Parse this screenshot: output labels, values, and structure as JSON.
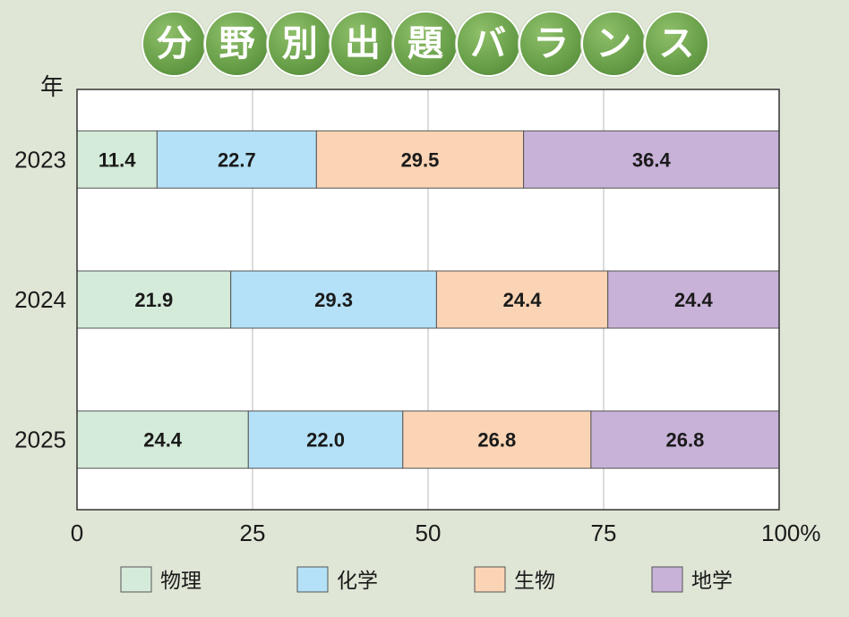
{
  "title_chars": [
    "分",
    "野",
    "別",
    "出",
    "題",
    "バ",
    "ラ",
    "ン",
    "ス"
  ],
  "chart_data": {
    "type": "bar",
    "orientation": "horizontal",
    "stacked": true,
    "y_axis_title": "年",
    "categories": [
      "2023",
      "2024",
      "2025"
    ],
    "series": [
      {
        "name": "物理",
        "color": "#d4ebd9",
        "values": [
          11.4,
          21.9,
          24.4
        ]
      },
      {
        "name": "化学",
        "color": "#b4e1f7",
        "values": [
          22.7,
          29.3,
          22.0
        ]
      },
      {
        "name": "生物",
        "color": "#fbd4b5",
        "values": [
          29.5,
          24.4,
          26.8
        ]
      },
      {
        "name": "地学",
        "color": "#c8b2d8",
        "values": [
          36.4,
          24.4,
          26.8
        ]
      }
    ],
    "xlim": [
      0,
      100
    ],
    "x_ticks": [
      "0",
      "25",
      "50",
      "75",
      "100%"
    ],
    "x_tick_values": [
      0,
      25,
      50,
      75,
      100
    ],
    "grid": true,
    "legend_position": "bottom"
  }
}
